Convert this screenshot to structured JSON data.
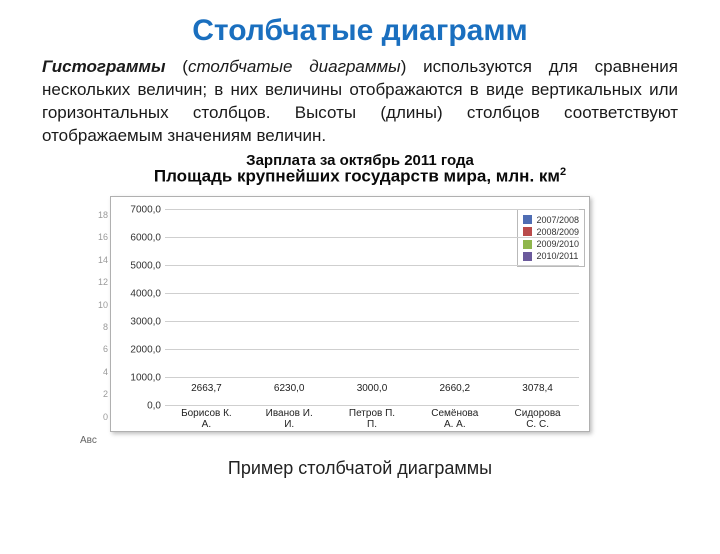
{
  "title": "Столбчатые диаграмм",
  "paragraph": {
    "histogram": "Гистограммы",
    "bar_diag": "столбчатые диаграммы",
    "rest": " используются для сравнения нескольких величин; в них величины отображаются в виде вертикальных или горизонтальных столбцов. Высоты (длины) столбцов соответствуют отображаемым значениям величин."
  },
  "overlap": {
    "line1": "Зарплата за октябрь 2011 года",
    "line2_pre": "Площадь крупнейших государств мира, млн. км",
    "line2_sup": "2"
  },
  "chart": {
    "type": "bar",
    "ylim": [
      0,
      7000
    ],
    "ytick_step": 1000,
    "y_labels": [
      "0,0",
      "1000,0",
      "2000,0",
      "3000,0",
      "4000,0",
      "5000,0",
      "6000,0",
      "7000,0"
    ],
    "bar_color": "#0a8f86",
    "grid_color": "#cfcfcf",
    "frame_border": "#b0b0b0",
    "value_fontsize": 10,
    "label_fontsize": 10,
    "categories": [
      "Борисов К. А.",
      "Иванов И. И.",
      "Петров П. П.",
      "Семёнова А. А.",
      "Сидорова С. С."
    ],
    "values": [
      2663.7,
      6230.0,
      3000.0,
      2660.2,
      3078.4
    ],
    "value_labels": [
      "2663,7",
      "6230,0",
      "3000,0",
      "2660,2",
      "3078,4"
    ]
  },
  "legend": {
    "items": [
      "2007/2008",
      "2008/2009",
      "2009/2010",
      "2010/2011"
    ],
    "colors": [
      "#4f6db3",
      "#b94a4a",
      "#8fb64c",
      "#6b5a9c"
    ]
  },
  "ghost_y": [
    "18",
    "16",
    "14",
    "12",
    "10",
    "8",
    "6",
    "4",
    "2",
    "0"
  ],
  "ghost_x": "Авс",
  "caption": "Пример столбчатой диаграммы"
}
